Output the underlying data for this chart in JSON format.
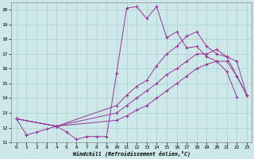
{
  "xlabel": "Windchill (Refroidissement éolien,°C)",
  "background_color": "#cce8e8",
  "line_color": "#993399",
  "xlim": [
    -0.5,
    23.5
  ],
  "ylim": [
    11,
    20.5
  ],
  "xticks": [
    0,
    1,
    2,
    3,
    4,
    5,
    6,
    7,
    8,
    9,
    10,
    11,
    12,
    13,
    14,
    15,
    16,
    17,
    18,
    19,
    20,
    21,
    22,
    23
  ],
  "yticks": [
    11,
    12,
    13,
    14,
    15,
    16,
    17,
    18,
    19,
    20
  ],
  "series": {
    "line1_x": [
      0,
      1,
      2,
      3,
      4,
      5,
      6,
      7,
      8,
      9,
      10,
      11,
      12,
      13,
      14,
      15,
      16,
      17,
      18,
      19,
      20,
      21,
      22
    ],
    "line1_y": [
      12.6,
      11.5,
      11.7,
      11.9,
      12.1,
      11.7,
      11.2,
      11.4,
      11.4,
      11.4,
      15.7,
      20.1,
      20.2,
      19.4,
      20.2,
      18.1,
      18.5,
      17.4,
      17.5,
      16.8,
      16.5,
      15.8,
      14.1
    ],
    "line2_x": [
      0,
      4,
      10,
      11,
      12,
      13,
      14,
      15,
      16,
      17,
      18,
      19,
      20,
      21,
      22,
      23
    ],
    "line2_y": [
      12.6,
      12.1,
      13.5,
      14.2,
      14.8,
      15.2,
      16.2,
      17.0,
      17.5,
      18.2,
      18.5,
      17.5,
      17.0,
      16.8,
      16.5,
      14.2
    ],
    "line3_x": [
      0,
      4,
      10,
      11,
      12,
      13,
      14,
      15,
      16,
      17,
      18,
      19,
      20,
      21,
      22,
      23
    ],
    "line3_y": [
      12.6,
      12.1,
      13.0,
      13.5,
      14.0,
      14.5,
      15.0,
      15.6,
      16.0,
      16.5,
      17.0,
      17.0,
      17.3,
      16.8,
      15.5,
      14.2
    ],
    "line4_x": [
      0,
      4,
      10,
      11,
      12,
      13,
      14,
      15,
      16,
      17,
      18,
      19,
      20,
      21,
      22,
      23
    ],
    "line4_y": [
      12.6,
      12.1,
      12.5,
      12.8,
      13.2,
      13.5,
      14.0,
      14.5,
      15.0,
      15.5,
      16.0,
      16.3,
      16.5,
      16.5,
      15.5,
      14.2
    ]
  }
}
